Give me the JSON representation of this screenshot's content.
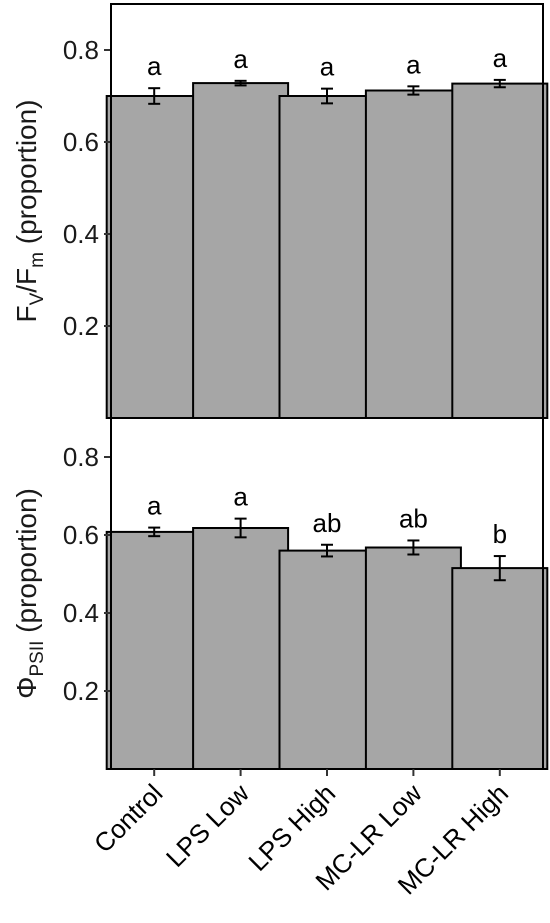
{
  "chart_data": {
    "type": "bar",
    "layout": "stacked-panels",
    "bar_color": "#a6a6a6",
    "categories": [
      "Control",
      "LPS Low",
      "LPS High",
      "MC-LR Low",
      "MC-LR High"
    ],
    "panels": [
      {
        "ylabel": {
          "base": "F",
          "sub1": "V",
          "mid": "/F",
          "sub2": "m",
          "tail": " (proportion)"
        },
        "ylim": [
          0,
          0.9
        ],
        "yticks": [
          0.2,
          0.4,
          0.6,
          0.8
        ],
        "ytick_labels": [
          "0.2",
          "0.4",
          "0.6",
          "0.8"
        ],
        "values": [
          0.7,
          0.728,
          0.7,
          0.712,
          0.727
        ],
        "errors": [
          0.017,
          0.005,
          0.016,
          0.009,
          0.008
        ],
        "letters": [
          "a",
          "a",
          "a",
          "a",
          "a"
        ]
      },
      {
        "ylabel": {
          "base": "Φ",
          "sub1": "PSII",
          "mid": "",
          "sub2": "",
          "tail": " (proportion)"
        },
        "ylim": [
          0,
          0.9
        ],
        "yticks": [
          0.2,
          0.4,
          0.6,
          0.8
        ],
        "ytick_labels": [
          "0.2",
          "0.4",
          "0.6",
          "0.8"
        ],
        "values": [
          0.608,
          0.618,
          0.56,
          0.568,
          0.515
        ],
        "errors": [
          0.011,
          0.024,
          0.015,
          0.018,
          0.031
        ],
        "letters": [
          "a",
          "a",
          "ab",
          "ab",
          "b"
        ]
      }
    ]
  }
}
